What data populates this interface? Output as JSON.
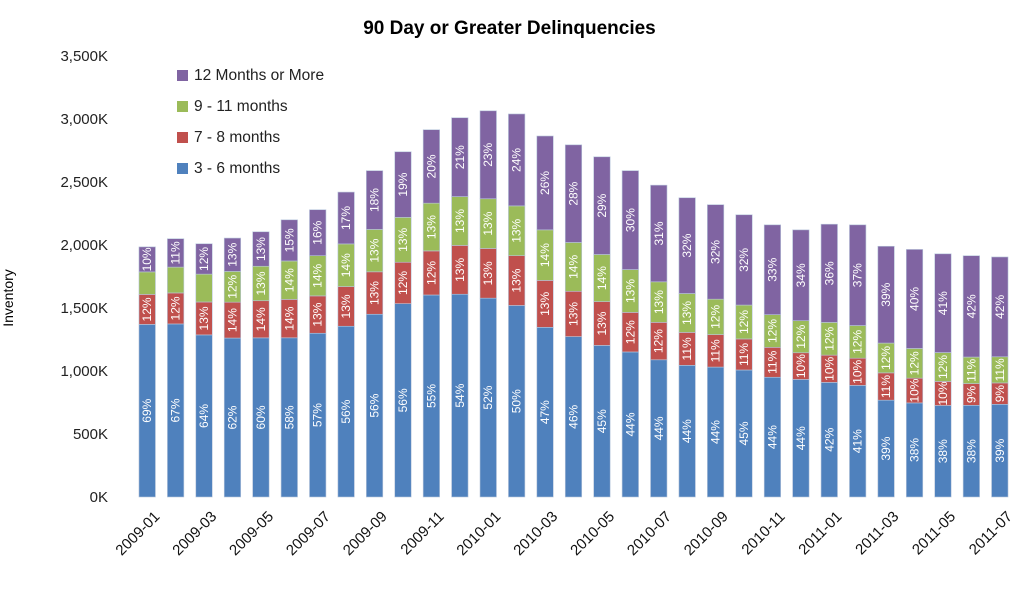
{
  "chart_data": {
    "type": "bar",
    "stacked": true,
    "title": "90 Day or Greater Delinquencies",
    "xlabel": "",
    "ylabel": "Inventory",
    "ylim": [
      0,
      3500
    ],
    "y_unit": "K",
    "y_ticks": [
      "0K",
      "500K",
      "1,000K",
      "1,500K",
      "2,000K",
      "2,500K",
      "3,000K",
      "3,500K"
    ],
    "y_tick_values": [
      0,
      500,
      1000,
      1500,
      2000,
      2500,
      3000,
      3500
    ],
    "grid": false,
    "legend_position": "top-left",
    "categories": [
      "2009-01",
      "2009-02",
      "2009-03",
      "2009-04",
      "2009-05",
      "2009-06",
      "2009-07",
      "2009-08",
      "2009-09",
      "2009-10",
      "2009-11",
      "2009-12",
      "2010-01",
      "2010-02",
      "2010-03",
      "2010-04",
      "2010-05",
      "2010-06",
      "2010-07",
      "2010-08",
      "2010-09",
      "2010-10",
      "2010-11",
      "2010-12",
      "2011-01",
      "2011-02",
      "2011-03",
      "2011-04",
      "2011-05",
      "2011-06",
      "2011-07"
    ],
    "x_tick_labels": [
      "2009-01",
      "2009-03",
      "2009-05",
      "2009-07",
      "2009-09",
      "2009-11",
      "2010-01",
      "2010-03",
      "2010-05",
      "2010-07",
      "2010-09",
      "2010-11",
      "2011-01",
      "2011-03",
      "2011-05",
      "2011-07"
    ],
    "totals": [
      1985,
      2050,
      2010,
      2055,
      2105,
      2200,
      2280,
      2420,
      2590,
      2740,
      2915,
      3010,
      3065,
      3040,
      2865,
      2795,
      2700,
      2590,
      2475,
      2375,
      2320,
      2240,
      2160,
      2120,
      2165,
      2160,
      1990,
      1965,
      1930,
      1915,
      1905
    ],
    "series": [
      {
        "name": "3 - 6 months",
        "color": "#4f81bd",
        "pct": [
          69,
          67,
          64,
          62,
          60,
          58,
          57,
          56,
          56,
          56,
          55,
          54,
          52,
          50,
          47,
          46,
          45,
          44,
          44,
          44,
          44,
          45,
          44,
          44,
          42,
          41,
          39,
          38,
          38,
          38,
          39
        ]
      },
      {
        "name": "7 - 8 months",
        "color": "#c0504d",
        "pct": [
          12,
          12,
          13,
          14,
          14,
          14,
          13,
          13,
          13,
          12,
          12,
          13,
          13,
          13,
          13,
          13,
          13,
          12,
          12,
          11,
          11,
          11,
          11,
          10,
          10,
          10,
          11,
          10,
          10,
          9,
          9
        ]
      },
      {
        "name": "9 - 11 months",
        "color": "#9bbb59",
        "pct": [
          9,
          10,
          11,
          12,
          13,
          14,
          14,
          14,
          13,
          13,
          13,
          13,
          13,
          13,
          14,
          14,
          14,
          13,
          13,
          13,
          12,
          12,
          12,
          12,
          12,
          12,
          12,
          12,
          12,
          11,
          11
        ],
        "hidden_labels": [
          0,
          1,
          2
        ]
      },
      {
        "name": "12 Months or More",
        "color": "#8064a2",
        "pct": [
          10,
          11,
          12,
          13,
          13,
          15,
          16,
          17,
          18,
          19,
          20,
          21,
          23,
          24,
          26,
          28,
          29,
          30,
          31,
          32,
          32,
          32,
          33,
          34,
          36,
          37,
          39,
          40,
          41,
          42,
          42
        ]
      }
    ],
    "legend_order": [
      "12 Months or More",
      "9 - 11 months",
      "7 - 8 months",
      "3 - 6 months"
    ]
  }
}
